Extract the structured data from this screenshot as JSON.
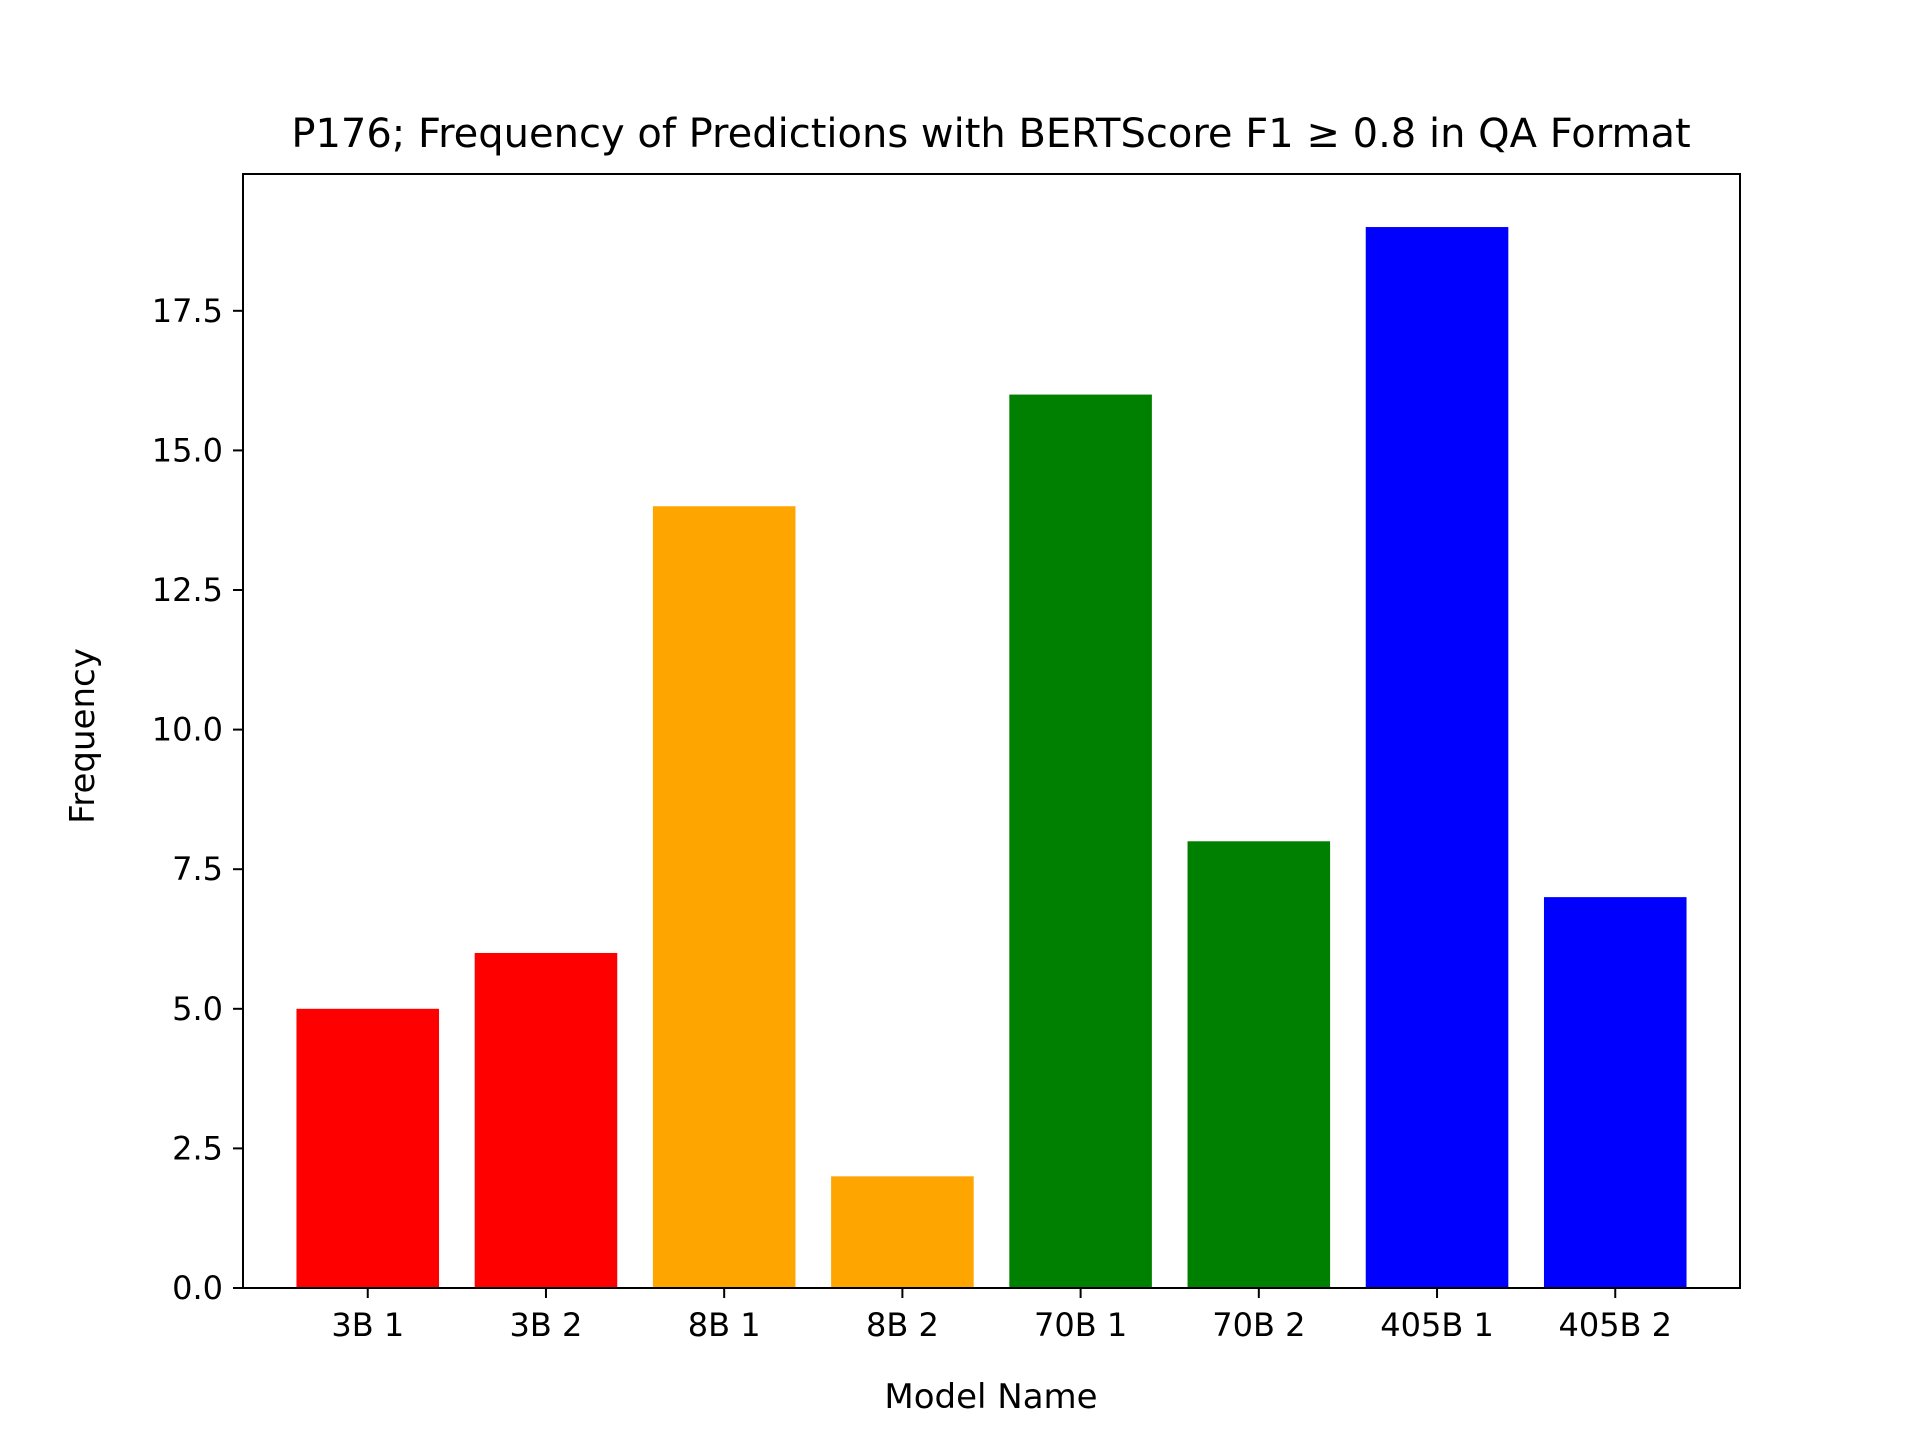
{
  "chart_data": {
    "type": "bar",
    "title": "P176; Frequency of Predictions with BERTScore F1 ≥ 0.8 in QA Format",
    "xlabel": "Model Name",
    "ylabel": "Frequency",
    "categories": [
      "3B 1",
      "3B 2",
      "8B 1",
      "8B 2",
      "70B 1",
      "70B 2",
      "405B 1",
      "405B 2"
    ],
    "values": [
      5,
      6,
      14,
      2,
      16,
      8,
      19,
      7
    ],
    "bar_colors": [
      "#ff0000",
      "#ff0000",
      "#ffa500",
      "#ffa500",
      "#008000",
      "#008000",
      "#0000ff",
      "#0000ff"
    ],
    "ylim": [
      0,
      19.95
    ],
    "yticks": [
      0.0,
      2.5,
      5.0,
      7.5,
      10.0,
      12.5,
      15.0,
      17.5
    ],
    "ytick_labels": [
      "0.0",
      "2.5",
      "5.0",
      "7.5",
      "10.0",
      "12.5",
      "15.0",
      "17.5"
    ],
    "grid": false,
    "legend": null
  }
}
